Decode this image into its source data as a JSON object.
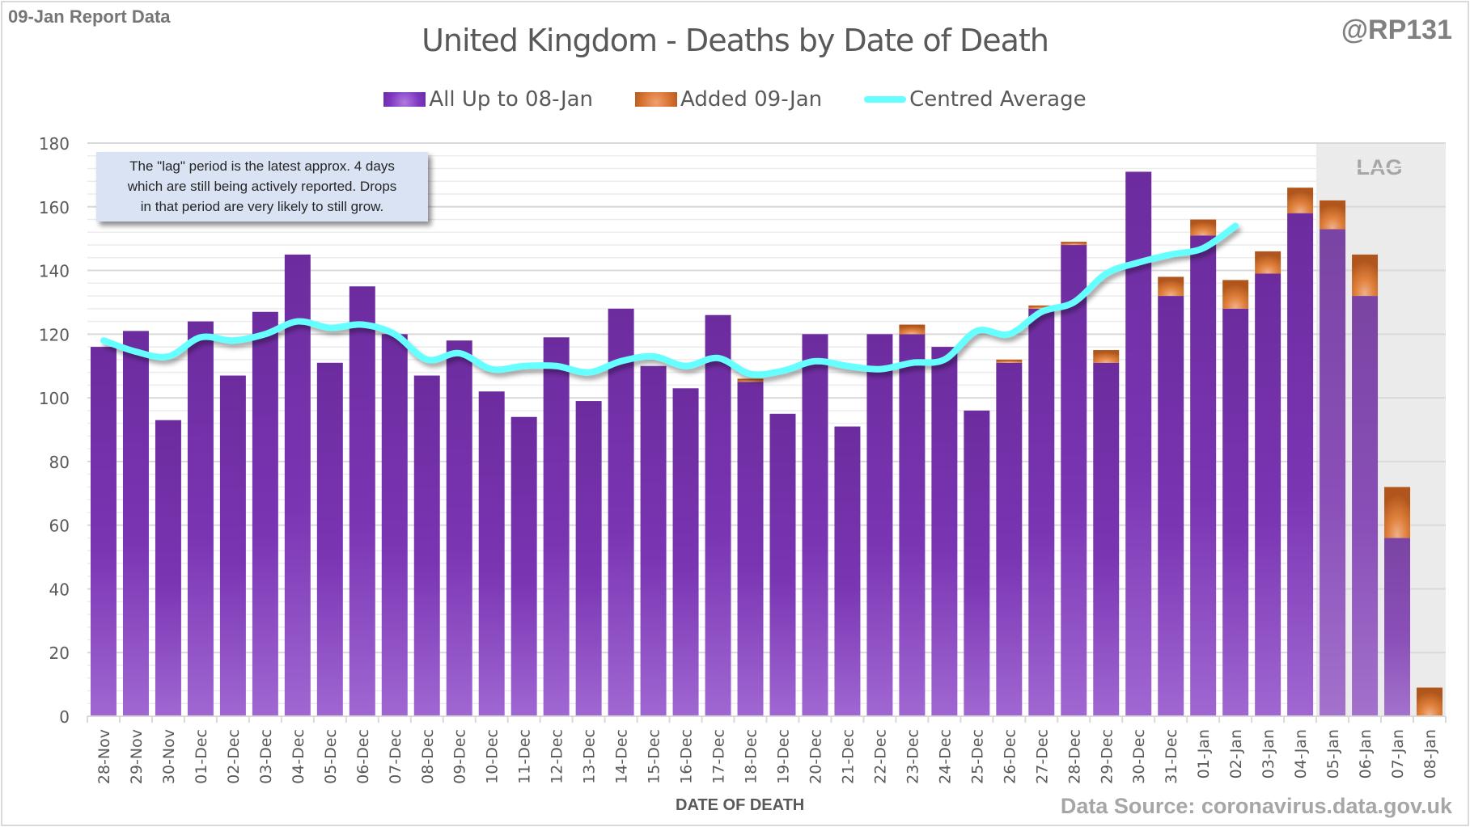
{
  "report_tag": "09-Jan Report Data",
  "handle": "@RP131",
  "source": "Data Source: coronavirus.data.gov.uk",
  "note": {
    "lines": [
      "The \"lag\" period is the latest approx. 4 days",
      "which are still being actively reported.  Drops",
      "in that period are very likely to still grow."
    ]
  },
  "lag_label": "LAG",
  "colors": {
    "base": "#7030a0",
    "added": "#d77330",
    "average": "#66ffff",
    "lag_band": "#ebebeb",
    "grid": "#d9d9d9"
  },
  "chart_data": {
    "type": "bar",
    "stacked": true,
    "title": "United Kingdom - Deaths by Date of Death",
    "xlabel": "DATE OF DEATH",
    "ylabel": "",
    "ylim": [
      0,
      180
    ],
    "yticks": [
      0,
      20,
      40,
      60,
      80,
      100,
      120,
      140,
      160,
      180
    ],
    "grid": true,
    "legend_position": "top-center",
    "categories": [
      "28-Nov",
      "29-Nov",
      "30-Nov",
      "01-Dec",
      "02-Dec",
      "03-Dec",
      "04-Dec",
      "05-Dec",
      "06-Dec",
      "07-Dec",
      "08-Dec",
      "09-Dec",
      "10-Dec",
      "11-Dec",
      "12-Dec",
      "13-Dec",
      "14-Dec",
      "15-Dec",
      "16-Dec",
      "17-Dec",
      "18-Dec",
      "19-Dec",
      "20-Dec",
      "21-Dec",
      "22-Dec",
      "23-Dec",
      "24-Dec",
      "25-Dec",
      "26-Dec",
      "27-Dec",
      "28-Dec",
      "29-Dec",
      "30-Dec",
      "31-Dec",
      "01-Jan",
      "02-Jan",
      "03-Jan",
      "04-Jan",
      "05-Jan",
      "06-Jan",
      "07-Jan",
      "08-Jan"
    ],
    "lag_categories": [
      "05-Jan",
      "06-Jan",
      "07-Jan",
      "08-Jan"
    ],
    "series": [
      {
        "name": "All Up to 08-Jan",
        "kind": "bar",
        "values": [
          116,
          121,
          93,
          124,
          107,
          127,
          145,
          111,
          135,
          120,
          107,
          118,
          102,
          94,
          119,
          99,
          128,
          110,
          103,
          126,
          105,
          95,
          120,
          91,
          120,
          120,
          116,
          96,
          111,
          128,
          148,
          111,
          171,
          132,
          151,
          128,
          139,
          158,
          153,
          132,
          56,
          0
        ]
      },
      {
        "name": "Added 09-Jan",
        "kind": "bar",
        "values": [
          0,
          0,
          0,
          0,
          0,
          0,
          0,
          0,
          0,
          0,
          0,
          0,
          0,
          0,
          0,
          0,
          0,
          0,
          0,
          0,
          1,
          0,
          0,
          0,
          0,
          3,
          0,
          0,
          1,
          1,
          1,
          4,
          0,
          6,
          5,
          9,
          7,
          8,
          9,
          13,
          16,
          9
        ]
      },
      {
        "name": "Centred Average",
        "kind": "line",
        "values": [
          118,
          114.5,
          113,
          119,
          118,
          120,
          124,
          122,
          123,
          120,
          112,
          114,
          109,
          110,
          110,
          108,
          111.5,
          113,
          110,
          112.5,
          107.5,
          108.5,
          111.5,
          110,
          109,
          111,
          112,
          121,
          120,
          127,
          130,
          139,
          142.5,
          145,
          147,
          154,
          null,
          null,
          null,
          null,
          null,
          null
        ]
      }
    ]
  }
}
